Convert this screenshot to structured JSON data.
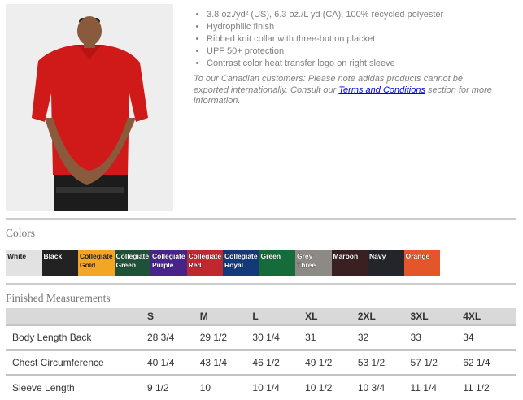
{
  "product": {
    "features": [
      "3.8 oz./yd² (US), 6.3 oz./L yd (CA), 100% recycled polyester",
      "Hydrophilic finish",
      "Ribbed knit collar with three-button placket",
      "UPF 50+ protection",
      "Contrast color heat transfer logo on right sleeve"
    ],
    "note_before": "To our Canadian customers: Please note adidas products cannot be exported internationally. Consult our ",
    "note_link": "Terms and Conditions",
    "note_after": " section for more information."
  },
  "colors": {
    "title": "Colors",
    "swatches": [
      {
        "name": "White",
        "color": "#e2e2e2",
        "text": "#222"
      },
      {
        "name": "Black",
        "color": "#222222",
        "text": "#fff"
      },
      {
        "name": "Collegiate Gold",
        "color": "#f2a623",
        "text": "#222"
      },
      {
        "name": "Collegiate Green",
        "color": "#1e5238",
        "text": "#fff"
      },
      {
        "name": "Collegiate Purple",
        "color": "#47238a",
        "text": "#fff"
      },
      {
        "name": "Collegiate Red",
        "color": "#c0282f",
        "text": "#fff"
      },
      {
        "name": "Collegiate Royal",
        "color": "#123a7a",
        "text": "#fff"
      },
      {
        "name": "Green",
        "color": "#156b3a",
        "text": "#fff"
      },
      {
        "name": "Grey Three",
        "color": "#8d8a85",
        "text": "#fff"
      },
      {
        "name": "Maroon",
        "color": "#3a2020",
        "text": "#fff"
      },
      {
        "name": "Navy",
        "color": "#24242b",
        "text": "#fff"
      },
      {
        "name": "Orange",
        "color": "#e5552a",
        "text": "#fff"
      }
    ]
  },
  "measurements": {
    "title": "Finished Measurements",
    "sizes": [
      "S",
      "M",
      "L",
      "XL",
      "2XL",
      "3XL",
      "4XL"
    ],
    "rows": [
      {
        "label": "Body Length Back",
        "values": [
          "28 3/4",
          "29 1/2",
          "30 1/4",
          "31",
          "32",
          "33",
          "34"
        ]
      },
      {
        "label": "Chest Circumference",
        "values": [
          "40 1/4",
          "43 1/4",
          "46 1/2",
          "49 1/2",
          "53 1/2",
          "57 1/2",
          "62 1/4"
        ]
      },
      {
        "label": "Sleeve Length",
        "values": [
          "9 1/2",
          "10",
          "10 1/4",
          "10 1/2",
          "10 3/4",
          "11 1/4",
          "11 1/2"
        ]
      }
    ]
  }
}
